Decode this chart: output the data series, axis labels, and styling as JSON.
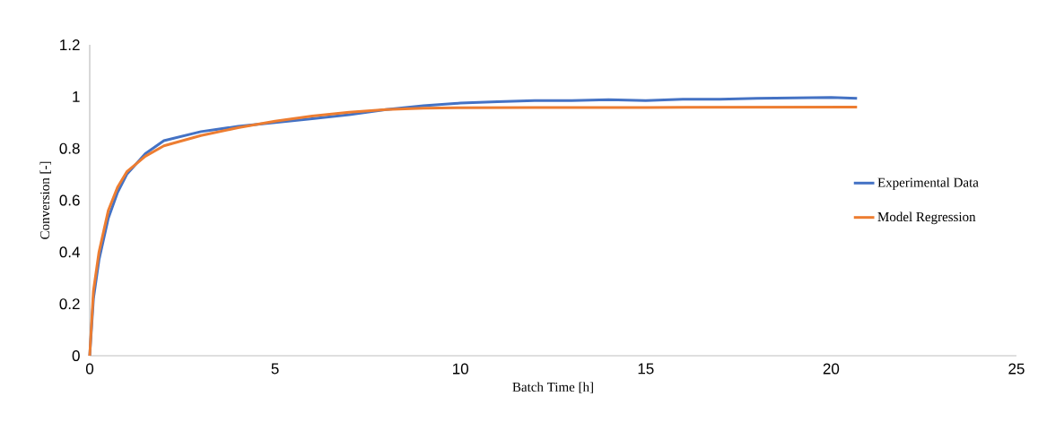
{
  "chart_data": {
    "type": "line",
    "xlabel": "Batch Time [h]",
    "ylabel": "Conversion [-]",
    "xlim": [
      0,
      25
    ],
    "xticks": [
      0,
      5,
      10,
      15,
      20,
      25
    ],
    "ylim": [
      0,
      1.2
    ],
    "yticks": [
      0,
      0.2,
      0.4,
      0.6,
      0.8,
      1,
      1.2
    ],
    "grid": false,
    "legend": "right",
    "marker": "none",
    "line_style": "solid",
    "series": [
      {
        "name": "Experimental Data",
        "color": "#4472c4",
        "x": [
          0,
          0.1,
          0.25,
          0.5,
          0.75,
          1,
          1.5,
          2,
          3,
          4,
          5,
          6,
          7,
          8,
          9,
          10,
          11,
          12,
          13,
          14,
          15,
          16,
          17,
          18,
          19,
          20,
          20.7
        ],
        "values": [
          0,
          0.22,
          0.37,
          0.53,
          0.63,
          0.7,
          0.78,
          0.83,
          0.865,
          0.885,
          0.9,
          0.915,
          0.93,
          0.95,
          0.965,
          0.975,
          0.98,
          0.985,
          0.985,
          0.988,
          0.985,
          0.99,
          0.99,
          0.993,
          0.995,
          0.997,
          0.993
        ]
      },
      {
        "name": "Model Regression",
        "color": "#ed7d31",
        "x": [
          0,
          0.1,
          0.25,
          0.5,
          0.75,
          1,
          1.5,
          2,
          3,
          4,
          5,
          6,
          7,
          8,
          9,
          10,
          12,
          15,
          20.7
        ],
        "values": [
          0,
          0.25,
          0.4,
          0.56,
          0.65,
          0.71,
          0.77,
          0.81,
          0.85,
          0.88,
          0.905,
          0.925,
          0.94,
          0.95,
          0.955,
          0.957,
          0.958,
          0.958,
          0.96
        ]
      }
    ]
  }
}
